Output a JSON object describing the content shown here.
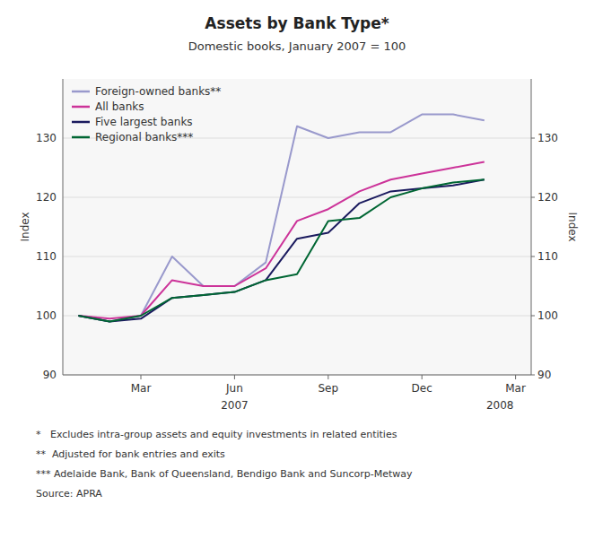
{
  "chart_data": {
    "type": "line",
    "title": "Assets by Bank Type*",
    "subtitle": "Domestic books, January 2007 = 100",
    "ylabel": "Index",
    "y2label": "Index",
    "x": [
      0,
      1,
      2,
      3,
      4,
      5,
      6,
      7,
      8,
      9,
      10,
      11,
      12,
      13
    ],
    "xlim": [
      -0.5,
      14.5
    ],
    "xticks": [
      {
        "value": 2,
        "label": "Mar"
      },
      {
        "value": 5,
        "label": "Jun"
      },
      {
        "value": 8,
        "label": "Sep"
      },
      {
        "value": 11,
        "label": "Dec"
      },
      {
        "value": 14,
        "label": "Mar"
      }
    ],
    "ylim": [
      90,
      140
    ],
    "yticks": [
      90,
      100,
      110,
      120,
      130
    ],
    "y2lim": [
      90,
      140
    ],
    "y2ticks": [
      90,
      100,
      110,
      120,
      130
    ],
    "grid": true,
    "legend": "upper left",
    "series": [
      {
        "name": "Foreign-owned banks**",
        "color": "#9999cc",
        "values": [
          100,
          99,
          100,
          110,
          105,
          105,
          109,
          132,
          130,
          131,
          131,
          134,
          134,
          133
        ]
      },
      {
        "name": "All banks",
        "color": "#cc3399",
        "values": [
          100,
          99.5,
          100,
          106,
          105,
          105,
          108,
          116,
          118,
          121,
          123,
          124,
          125,
          126
        ]
      },
      {
        "name": "Five largest banks",
        "color": "#1a1a5e",
        "values": [
          100,
          99,
          99.5,
          103,
          103.5,
          104,
          106,
          113,
          114,
          119,
          121,
          121.5,
          122,
          123
        ]
      },
      {
        "name": "Regional banks***",
        "color": "#006633",
        "values": [
          100,
          99,
          100,
          103,
          103.5,
          104,
          106,
          107,
          116,
          116.5,
          120,
          121.5,
          122.5,
          123
        ]
      }
    ],
    "annotations": [
      {
        "text": "2007",
        "x": 5
      },
      {
        "text": "2008",
        "x": 13.5
      }
    ],
    "notes": [
      "*   Excludes intra-group assets and equity investments in related entities",
      "**  Adjusted for bank entries and exits",
      "*** Adelaide Bank, Bank of Queensland, Bendigo Bank and Suncorp-Metway",
      "Source: APRA"
    ]
  }
}
